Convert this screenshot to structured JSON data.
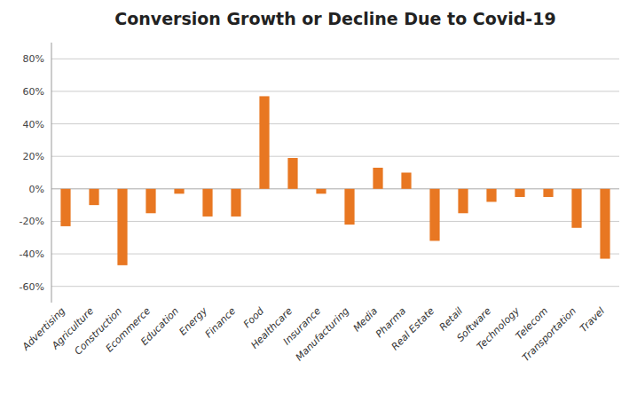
{
  "chart_data": {
    "type": "bar",
    "title": "Conversion Growth or Decline Due to Covid-19",
    "categories": [
      "Advertising",
      "Agriculture",
      "Construction",
      "Ecommerce",
      "Education",
      "Energy",
      "Finance",
      "Food",
      "Healthcare",
      "Insurance",
      "Manufacturing",
      "Media",
      "Pharma",
      "Real Estate",
      "Retail",
      "Software",
      "Technology",
      "Telecom",
      "Transportation",
      "Travel"
    ],
    "values": [
      -23,
      -10,
      -47,
      -15,
      -3,
      -17,
      -17,
      57,
      19,
      -3,
      -22,
      13,
      10,
      -32,
      -15,
      -8,
      -5,
      -5,
      -24,
      -43
    ],
    "color": "#E87722",
    "ylim": [
      -70,
      90
    ],
    "yticks": [
      {
        "value": -60,
        "label": "-60%"
      },
      {
        "value": -40,
        "label": "-40%"
      },
      {
        "value": -20,
        "label": "-20%"
      },
      {
        "value": 0,
        "label": "0%"
      },
      {
        "value": 20,
        "label": "20%"
      },
      {
        "value": 40,
        "label": "40%"
      },
      {
        "value": 60,
        "label": "60%"
      },
      {
        "value": 80,
        "label": "80%"
      }
    ],
    "grid": true
  }
}
